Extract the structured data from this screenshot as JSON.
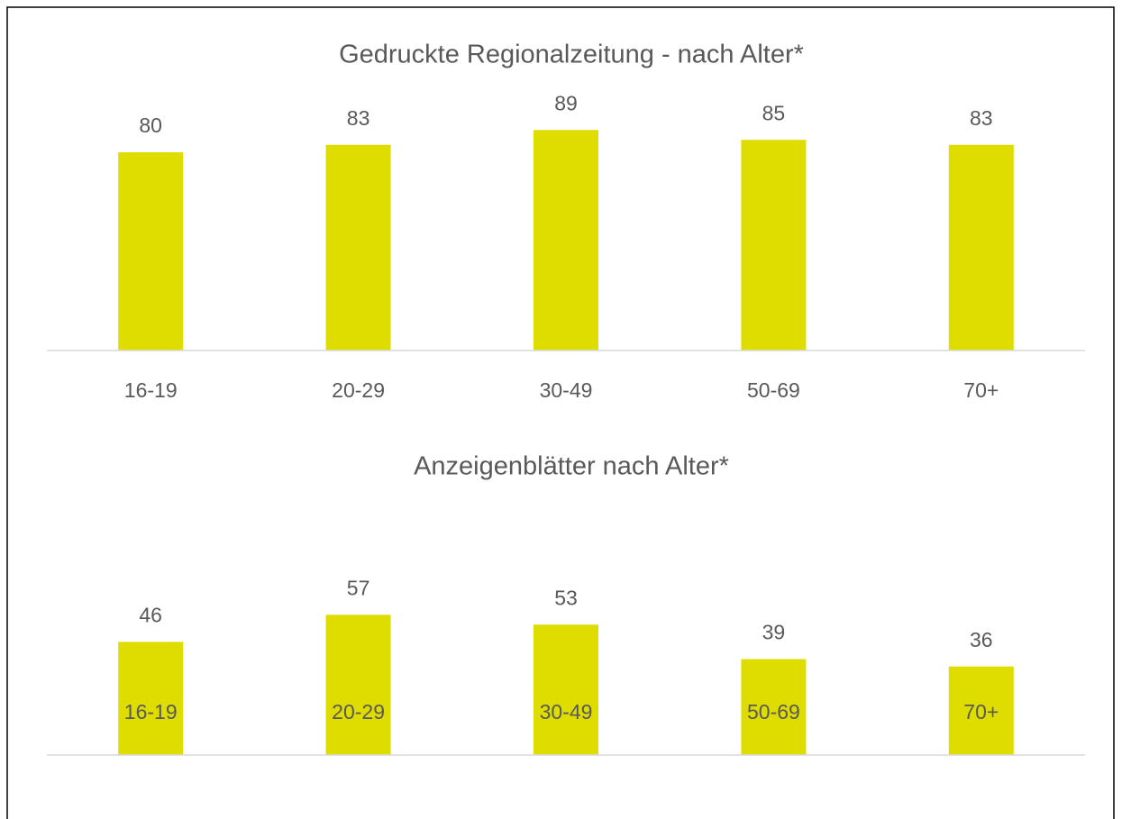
{
  "chart_data": [
    {
      "type": "bar",
      "title": "Gedruckte Regionalzeitung - nach Alter*",
      "categories": [
        "16-19",
        "20-29",
        "30-49",
        "50-69",
        "70+"
      ],
      "values": [
        80,
        83,
        89,
        85,
        83
      ],
      "color": "#dfdc00",
      "ylim": [
        0,
        100
      ]
    },
    {
      "type": "bar",
      "title": "Anzeigenblätter nach Alter*",
      "categories": [
        "16-19",
        "20-29",
        "30-49",
        "50-69",
        "70+"
      ],
      "values": [
        46,
        57,
        53,
        39,
        36
      ],
      "color": "#dfdc00",
      "ylim": [
        0,
        100
      ]
    }
  ]
}
